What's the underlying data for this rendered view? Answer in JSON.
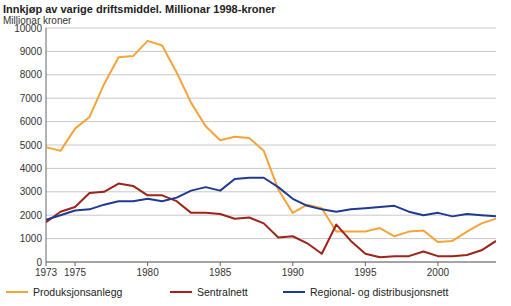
{
  "chart_data": {
    "type": "line",
    "title": "Innkjøp av varige driftsmiddel. Millionar 1998-kroner",
    "y_label": "Millionar kroner",
    "x": [
      1973,
      1974,
      1975,
      1976,
      1977,
      1978,
      1979,
      1980,
      1981,
      1982,
      1983,
      1984,
      1985,
      1986,
      1987,
      1988,
      1989,
      1990,
      1991,
      1992,
      1993,
      1994,
      1995,
      1996,
      1997,
      1998,
      1999,
      2000,
      2001,
      2002,
      2003,
      2004
    ],
    "series": [
      {
        "name": "Produksjonsanlegg",
        "color": "#f5a43a",
        "values": [
          4900,
          4750,
          5700,
          6200,
          7600,
          8750,
          8800,
          9450,
          9250,
          8100,
          6800,
          5800,
          5200,
          5350,
          5300,
          4750,
          3100,
          2100,
          2450,
          2300,
          1300,
          1300,
          1300,
          1450,
          1100,
          1300,
          1350,
          850,
          900,
          1300,
          1650,
          1850
        ]
      },
      {
        "name": "Sentralnett",
        "color": "#9e2318",
        "values": [
          1700,
          2150,
          2350,
          2950,
          3000,
          3350,
          3250,
          2850,
          2850,
          2600,
          2100,
          2100,
          2050,
          1850,
          1900,
          1650,
          1050,
          1100,
          800,
          350,
          1600,
          900,
          350,
          200,
          250,
          250,
          450,
          250,
          250,
          300,
          500,
          900
        ]
      },
      {
        "name": "Regional- og distribusjonsnett",
        "color": "#1f3a93",
        "values": [
          1800,
          2000,
          2200,
          2250,
          2450,
          2600,
          2600,
          2700,
          2600,
          2750,
          3050,
          3200,
          3050,
          3550,
          3600,
          3600,
          3200,
          2700,
          2400,
          2250,
          2150,
          2250,
          2300,
          2350,
          2400,
          2150,
          2000,
          2100,
          1950,
          2050,
          2000,
          1950
        ]
      }
    ],
    "xlim": [
      1973,
      2004
    ],
    "xticks": [
      1973,
      1975,
      1980,
      1985,
      1990,
      1995,
      2000
    ],
    "ylim": [
      0,
      10000
    ],
    "yticks": [
      0,
      1000,
      2000,
      3000,
      4000,
      5000,
      6000,
      7000,
      8000,
      9000,
      10000
    ],
    "grid": true,
    "legend": "bottom"
  }
}
